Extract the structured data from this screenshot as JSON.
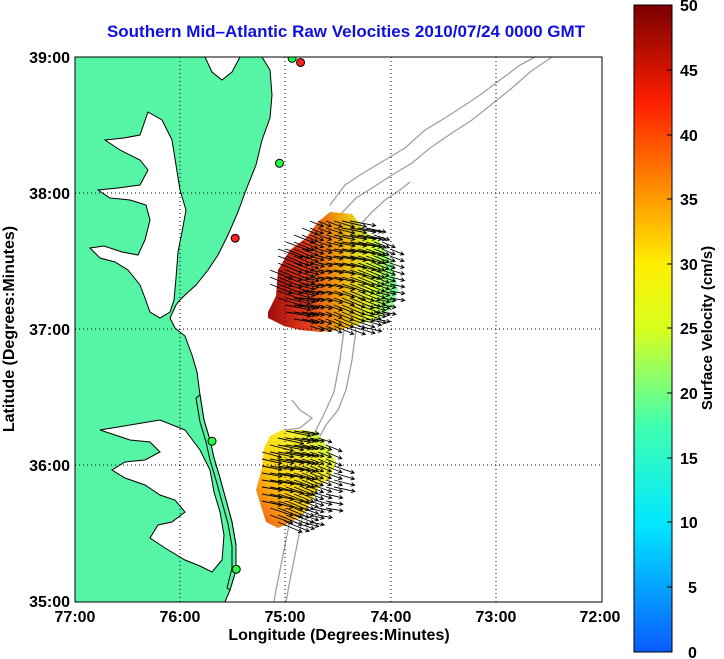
{
  "title": "Southern Mid–Atlantic Raw Velocities 2010/07/24 0000 GMT",
  "axes": {
    "xlabel": "Longitude (Degrees:Minutes)",
    "ylabel": "Latitude (Degrees:Minutes)",
    "x_ticks": [
      "77:00",
      "76:00",
      "75:00",
      "74:00",
      "73:00",
      "72:00"
    ],
    "y_ticks": [
      "39:00",
      "38:00",
      "37:00",
      "36:00",
      "35:00"
    ],
    "xlim": [
      -77,
      -72
    ],
    "ylim": [
      35,
      39
    ],
    "grid": "dotted"
  },
  "colorbar": {
    "label": "Surface Velocity (cm/s)",
    "ticks": [
      "50",
      "45",
      "40",
      "35",
      "30",
      "25",
      "20",
      "15",
      "10",
      "5",
      "0"
    ],
    "range": [
      0,
      50
    ]
  },
  "colors": {
    "land": "#55f5a5",
    "water": "#ffffff",
    "coastline": "#000000",
    "bathymetry": "#a0a0a0",
    "title": "#1010e0"
  },
  "stations": [
    {
      "lon": -74.86,
      "lat": 38.96,
      "status": "red"
    },
    {
      "lon": -74.94,
      "lat": 38.99,
      "status": "green"
    },
    {
      "lon": -75.06,
      "lat": 38.22,
      "status": "green"
    },
    {
      "lon": -75.48,
      "lat": 37.67,
      "status": "red"
    },
    {
      "lon": -75.7,
      "lat": 36.18,
      "status": "green"
    },
    {
      "lon": -75.47,
      "lat": 35.24,
      "status": "green"
    }
  ]
}
